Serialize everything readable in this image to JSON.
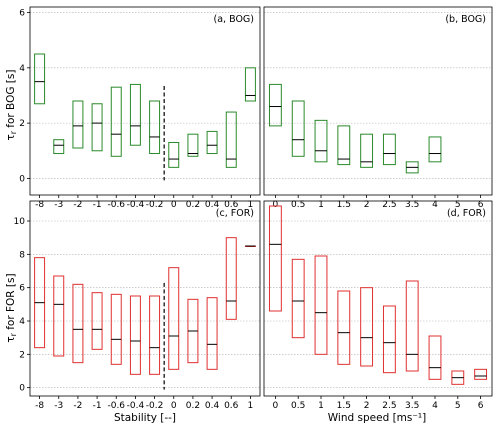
{
  "chart_data": [
    {
      "type": "boxplot",
      "panel_label": "(a, BOG)",
      "ylabel": "τr for BOG [s]",
      "ylim": [
        -0.6,
        6.2
      ],
      "yticks": [
        "0",
        "2",
        "4",
        "6"
      ],
      "box_color": "#2a8a2a",
      "categories": [
        "-8",
        "-3",
        "-2",
        "-1",
        "-0.6",
        "-0.4",
        "-0.2",
        "0",
        "0.2",
        "0.4",
        "0.6",
        "1"
      ],
      "boxes": [
        {
          "q1": 2.7,
          "median": 3.5,
          "q3": 4.5
        },
        {
          "q1": 0.9,
          "median": 1.2,
          "q3": 1.4
        },
        {
          "q1": 1.1,
          "median": 1.9,
          "q3": 2.8
        },
        {
          "q1": 1.0,
          "median": 2.0,
          "q3": 2.7
        },
        {
          "q1": 0.8,
          "median": 1.6,
          "q3": 3.3
        },
        {
          "q1": 1.2,
          "median": 1.9,
          "q3": 3.4
        },
        {
          "q1": 0.9,
          "median": 1.5,
          "q3": 2.8
        },
        {
          "q1": 0.4,
          "median": 0.7,
          "q3": 1.3
        },
        {
          "q1": 0.8,
          "median": 0.9,
          "q3": 1.6
        },
        {
          "q1": 0.9,
          "median": 1.2,
          "q3": 1.7
        },
        {
          "q1": 0.4,
          "median": 0.7,
          "q3": 2.4
        },
        {
          "q1": 2.8,
          "median": 3.0,
          "q3": 4.0
        }
      ],
      "divider_after_index": 6
    },
    {
      "type": "boxplot",
      "panel_label": "(b, BOG)",
      "ylim": [
        -0.6,
        6.2
      ],
      "box_color": "#2a8a2a",
      "categories": [
        "0",
        "0.5",
        "1",
        "1.5",
        "2",
        "2.5",
        "3.5",
        "4",
        "5",
        "6"
      ],
      "boxes": [
        {
          "q1": 1.9,
          "median": 2.6,
          "q3": 3.4
        },
        {
          "q1": 0.8,
          "median": 1.4,
          "q3": 2.8
        },
        {
          "q1": 0.6,
          "median": 1.0,
          "q3": 2.1
        },
        {
          "q1": 0.5,
          "median": 0.7,
          "q3": 1.9
        },
        {
          "q1": 0.4,
          "median": 0.6,
          "q3": 1.6
        },
        {
          "q1": 0.5,
          "median": 0.9,
          "q3": 1.6
        },
        {
          "q1": 0.2,
          "median": 0.4,
          "q3": 0.6
        },
        {
          "q1": 0.6,
          "median": 0.9,
          "q3": 1.5
        },
        null,
        null
      ]
    },
    {
      "type": "boxplot",
      "panel_label": "(c, FOR)",
      "ylabel": "τr for FOR [s]",
      "xlabel": "Stability [--]",
      "ylim": [
        -0.5,
        11.2
      ],
      "yticks": [
        "0",
        "2",
        "4",
        "6",
        "8",
        "10"
      ],
      "box_color": "#e03030",
      "categories": [
        "-8",
        "-3",
        "-2",
        "-1",
        "-0.6",
        "-0.4",
        "-0.2",
        "0",
        "0.2",
        "0.4",
        "0.6",
        "1"
      ],
      "boxes": [
        {
          "q1": 2.4,
          "median": 5.1,
          "q3": 7.8
        },
        {
          "q1": 1.9,
          "median": 5.0,
          "q3": 6.7
        },
        {
          "q1": 1.5,
          "median": 3.5,
          "q3": 6.2
        },
        {
          "q1": 2.3,
          "median": 3.5,
          "q3": 5.7
        },
        {
          "q1": 1.4,
          "median": 2.9,
          "q3": 5.6
        },
        {
          "q1": 0.8,
          "median": 2.8,
          "q3": 5.5
        },
        {
          "q1": 0.8,
          "median": 2.4,
          "q3": 5.5
        },
        {
          "q1": 1.1,
          "median": 3.1,
          "q3": 7.2
        },
        {
          "q1": 1.5,
          "median": 3.4,
          "q3": 5.3
        },
        {
          "q1": 1.1,
          "median": 2.6,
          "q3": 5.4
        },
        {
          "q1": 4.1,
          "median": 5.2,
          "q3": 9.0
        },
        {
          "q1": 8.5,
          "median": 8.5,
          "q3": 8.5
        }
      ],
      "divider_after_index": 6
    },
    {
      "type": "boxplot",
      "panel_label": "(d, FOR)",
      "xlabel": "Wind speed [ms⁻¹]",
      "ylim": [
        -0.5,
        11.2
      ],
      "box_color": "#e03030",
      "categories": [
        "0",
        "0.5",
        "1",
        "1.5",
        "2",
        "2.5",
        "3.5",
        "4",
        "5",
        "6"
      ],
      "boxes": [
        {
          "q1": 4.6,
          "median": 8.6,
          "q3": 10.9
        },
        {
          "q1": 3.0,
          "median": 5.2,
          "q3": 7.7
        },
        {
          "q1": 2.0,
          "median": 4.5,
          "q3": 7.9
        },
        {
          "q1": 1.4,
          "median": 3.3,
          "q3": 5.8
        },
        {
          "q1": 1.3,
          "median": 3.0,
          "q3": 6.0
        },
        {
          "q1": 0.9,
          "median": 2.7,
          "q3": 4.9
        },
        {
          "q1": 1.0,
          "median": 2.0,
          "q3": 6.4
        },
        {
          "q1": 0.5,
          "median": 1.2,
          "q3": 3.1
        },
        {
          "q1": 0.2,
          "median": 0.6,
          "q3": 1.0
        },
        {
          "q1": 0.5,
          "median": 0.7,
          "q3": 1.1
        }
      ]
    }
  ]
}
